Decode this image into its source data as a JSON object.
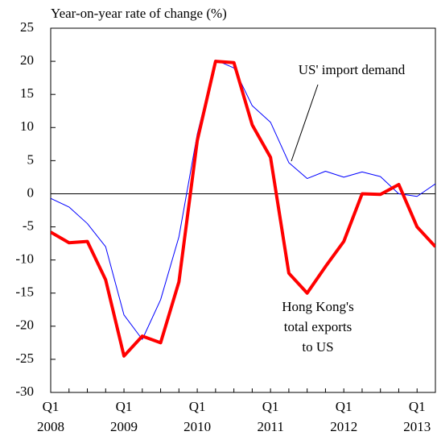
{
  "chart_data": {
    "type": "line",
    "title": "Year-on-year rate of change (%)",
    "categories": [
      "Q1 2008",
      null,
      null,
      null,
      "Q1 2009",
      null,
      null,
      null,
      "Q1 2010",
      null,
      null,
      null,
      "Q1 2011",
      null,
      null,
      null,
      "Q1 2012",
      null,
      null,
      null,
      "Q1 2013",
      null
    ],
    "series": [
      {
        "color": "#0000ff",
        "width": 1,
        "values": [
          -0.7,
          -2,
          -4.5,
          -8,
          -18.3,
          -22,
          -16,
          -6.5,
          9,
          20.2,
          19,
          13.3,
          10.8,
          4.7,
          2.3,
          3.4,
          2.5,
          3.3,
          2.6,
          0,
          -0.4,
          1.5
        ]
      },
      {
        "color": "#ff0000",
        "width": 4,
        "values": [
          -5.8,
          -7.4,
          -7.2,
          -13,
          -24.5,
          -21.5,
          -22.5,
          -13.3,
          8,
          20,
          19.8,
          10.4,
          5.5,
          -12,
          -15,
          -11,
          -7.2,
          0,
          -0.1,
          1.4,
          -5,
          -8
        ]
      }
    ],
    "annotations": [
      {
        "lines": [
          "US' import demand"
        ]
      },
      {
        "lines": [
          "Hong Kong's",
          "total exports",
          "to US"
        ]
      }
    ],
    "ylim": [
      -30,
      25
    ],
    "yticks": [
      -30,
      -25,
      -20,
      -15,
      -10,
      -5,
      0,
      5,
      10,
      15,
      20,
      25
    ]
  }
}
